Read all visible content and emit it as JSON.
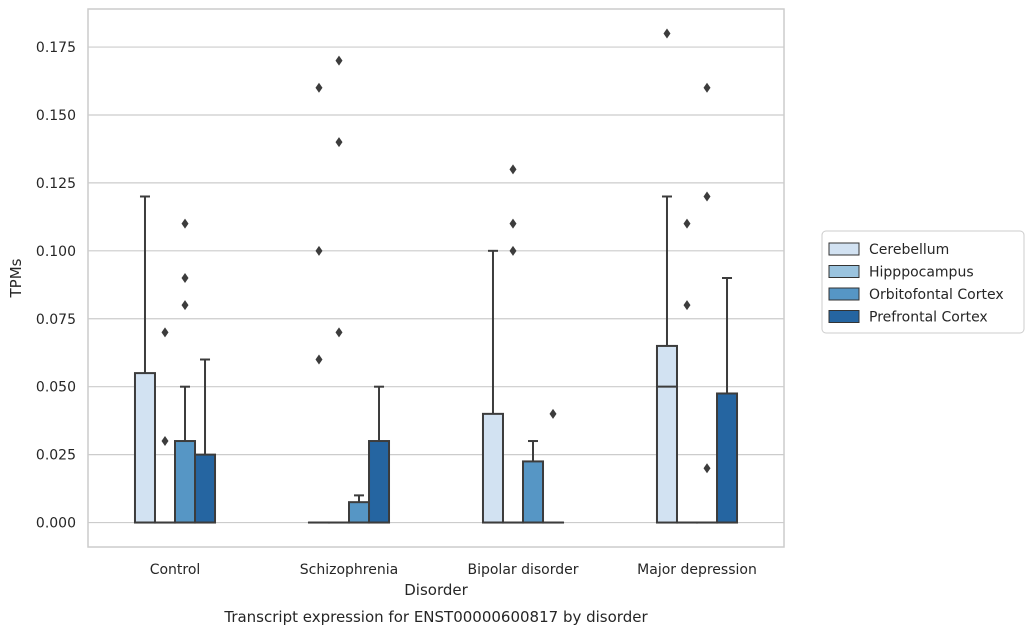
{
  "caption": "Transcript expression for ENST00000600817 by disorder",
  "chart_data": {
    "type": "box",
    "xlabel": "Disorder",
    "ylabel": "TPMs",
    "ylim": [
      -0.009,
      0.189
    ],
    "yticks": [
      0.0,
      0.025,
      0.05,
      0.075,
      0.1,
      0.125,
      0.15,
      0.175
    ],
    "ytick_labels": [
      "0.000",
      "0.025",
      "0.050",
      "0.075",
      "0.100",
      "0.125",
      "0.150",
      "0.175"
    ],
    "categories": [
      "Control",
      "Schizophrenia",
      "Bipolar disorder",
      "Major depression"
    ],
    "grid": "horizontal",
    "legend_position": "right",
    "series": [
      {
        "name": "Cerebellum",
        "color": "#d2e2f2",
        "boxes": [
          {
            "q1": 0.0,
            "median": 0.0,
            "q3": 0.055,
            "whisker_low": 0.0,
            "whisker_high": 0.12,
            "outliers": []
          },
          {
            "q1": 0.0,
            "median": 0.0,
            "q3": 0.0,
            "whisker_low": 0.0,
            "whisker_high": 0.0,
            "outliers": [
              0.06,
              0.1,
              0.16
            ]
          },
          {
            "q1": 0.0,
            "median": 0.0,
            "q3": 0.04,
            "whisker_low": 0.0,
            "whisker_high": 0.1,
            "outliers": []
          },
          {
            "q1": 0.0,
            "median": 0.05,
            "q3": 0.065,
            "whisker_low": 0.0,
            "whisker_high": 0.12,
            "outliers": [
              0.18
            ]
          }
        ]
      },
      {
        "name": "Hipppocampus",
        "color": "#9ac3de",
        "boxes": [
          {
            "q1": 0.0,
            "median": 0.0,
            "q3": 0.0,
            "whisker_low": 0.0,
            "whisker_high": 0.0,
            "outliers": [
              0.03,
              0.07
            ]
          },
          {
            "q1": 0.0,
            "median": 0.0,
            "q3": 0.0,
            "whisker_low": 0.0,
            "whisker_high": 0.0,
            "outliers": [
              0.07,
              0.14,
              0.17
            ]
          },
          {
            "q1": 0.0,
            "median": 0.0,
            "q3": 0.0,
            "whisker_low": 0.0,
            "whisker_high": 0.0,
            "outliers": [
              0.1,
              0.11,
              0.13
            ]
          },
          {
            "q1": 0.0,
            "median": 0.0,
            "q3": 0.0,
            "whisker_low": 0.0,
            "whisker_high": 0.0,
            "outliers": [
              0.08,
              0.11
            ]
          }
        ]
      },
      {
        "name": "Orbitofontal Cortex",
        "color": "#5696c5",
        "boxes": [
          {
            "q1": 0.0,
            "median": 0.0,
            "q3": 0.03,
            "whisker_low": 0.0,
            "whisker_high": 0.05,
            "outliers": [
              0.08,
              0.09,
              0.11
            ]
          },
          {
            "q1": 0.0,
            "median": 0.0,
            "q3": 0.0075,
            "whisker_low": 0.0,
            "whisker_high": 0.01,
            "outliers": []
          },
          {
            "q1": 0.0,
            "median": 0.0,
            "q3": 0.0225,
            "whisker_low": 0.0,
            "whisker_high": 0.03,
            "outliers": []
          },
          {
            "q1": 0.0,
            "median": 0.0,
            "q3": 0.0,
            "whisker_low": 0.0,
            "whisker_high": 0.0,
            "outliers": [
              0.02,
              0.12,
              0.16
            ]
          }
        ]
      },
      {
        "name": "Prefrontal Cortex",
        "color": "#2565a1",
        "boxes": [
          {
            "q1": 0.0,
            "median": 0.0,
            "q3": 0.025,
            "whisker_low": 0.0,
            "whisker_high": 0.06,
            "outliers": []
          },
          {
            "q1": 0.0,
            "median": 0.0,
            "q3": 0.03,
            "whisker_low": 0.0,
            "whisker_high": 0.05,
            "outliers": []
          },
          {
            "q1": 0.0,
            "median": 0.0,
            "q3": 0.0,
            "whisker_low": 0.0,
            "whisker_high": 0.0,
            "outliers": [
              0.04
            ]
          },
          {
            "q1": 0.0,
            "median": 0.0,
            "q3": 0.0475,
            "whisker_low": 0.0,
            "whisker_high": 0.09,
            "outliers": []
          }
        ]
      }
    ]
  }
}
